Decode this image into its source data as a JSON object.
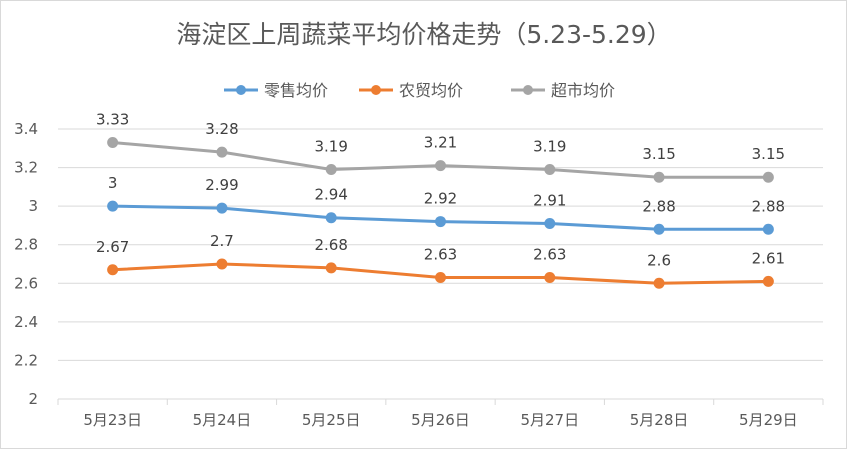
{
  "chart_data": {
    "type": "line",
    "title": "海淀区上周蔬菜平均价格走势（5.23-5.29）",
    "categories": [
      "5月23日",
      "5月24日",
      "5月25日",
      "5月26日",
      "5月27日",
      "5月28日",
      "5月29日"
    ],
    "ylim": [
      2,
      3.4
    ],
    "yticks": [
      "2",
      "2.2",
      "2.4",
      "2.6",
      "2.8",
      "3",
      "3.2",
      "3.4"
    ],
    "grid": true,
    "legend_position": "top",
    "series": [
      {
        "name": "零售均价",
        "color": "#5b9bd5",
        "values": [
          3,
          2.99,
          2.94,
          2.92,
          2.91,
          2.88,
          2.88
        ],
        "labels": [
          "3",
          "2.99",
          "2.94",
          "2.92",
          "2.91",
          "2.88",
          "2.88"
        ]
      },
      {
        "name": "农贸均价",
        "color": "#ed7d31",
        "values": [
          2.67,
          2.7,
          2.68,
          2.63,
          2.63,
          2.6,
          2.61
        ],
        "labels": [
          "2.67",
          "2.7",
          "2.68",
          "2.63",
          "2.63",
          "2.6",
          "2.61"
        ]
      },
      {
        "name": "超市均价",
        "color": "#a5a5a5",
        "values": [
          3.33,
          3.28,
          3.19,
          3.21,
          3.19,
          3.15,
          3.15
        ],
        "labels": [
          "3.33",
          "3.28",
          "3.19",
          "3.21",
          "3.19",
          "3.15",
          "3.15"
        ]
      }
    ]
  }
}
